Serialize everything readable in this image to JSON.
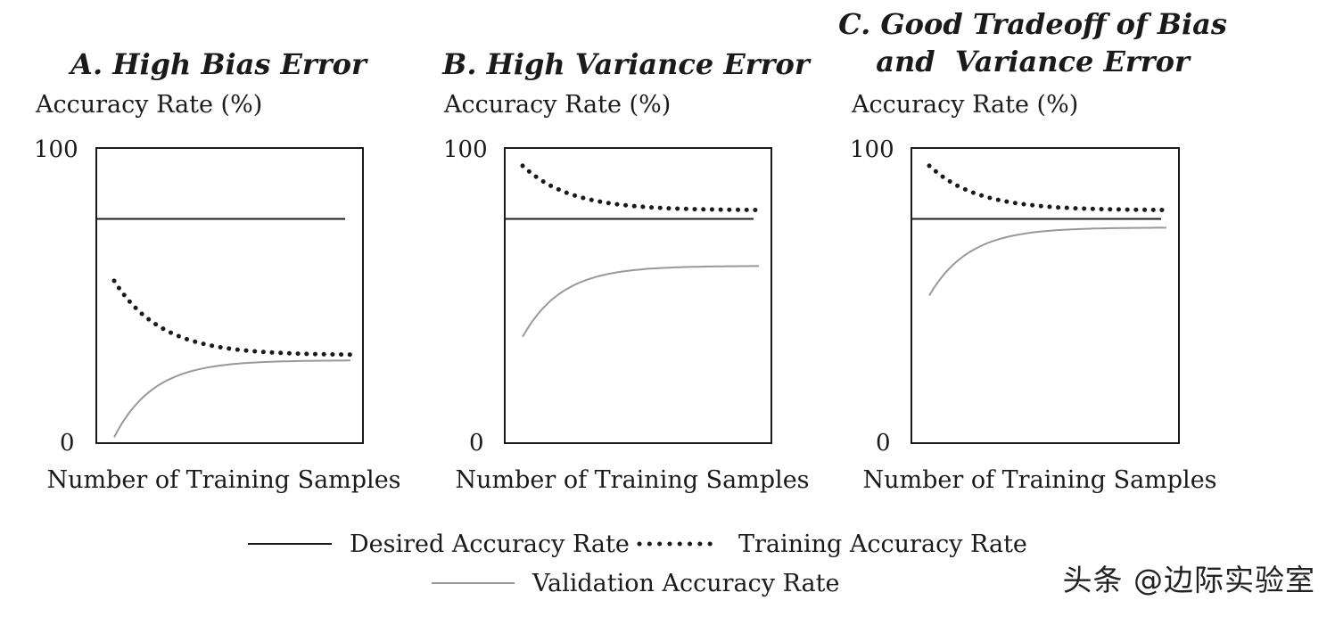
{
  "chart_data": [
    {
      "type": "line",
      "title_lines": [
        "A. High Bias Error"
      ],
      "ylabel": "Accuracy Rate (%)",
      "xlabel": "Number of Training Samples",
      "ylim": [
        0,
        100
      ],
      "yticks": [
        "100",
        "0"
      ],
      "desired": 76,
      "training": {
        "start": 55,
        "end": 30
      },
      "validation": {
        "start": 2,
        "end": 28
      }
    },
    {
      "type": "line",
      "title_lines": [
        "B. High Variance Error"
      ],
      "ylabel": "Accuracy Rate (%)",
      "xlabel": "Number of Training Samples",
      "ylim": [
        0,
        100
      ],
      "yticks": [
        "100",
        "0"
      ],
      "desired": 76,
      "training": {
        "start": 94,
        "end": 79
      },
      "validation": {
        "start": 36,
        "end": 60
      }
    },
    {
      "type": "line",
      "title_lines": [
        "C. Good Tradeoff of Bias",
        "and  Variance Error"
      ],
      "ylabel": "Accuracy Rate (%)",
      "xlabel": "Number of Training Samples",
      "ylim": [
        0,
        100
      ],
      "yticks": [
        "100",
        "0"
      ],
      "desired": 76,
      "training": {
        "start": 94,
        "end": 79
      },
      "validation": {
        "start": 50,
        "end": 73
      }
    }
  ],
  "legend": {
    "desired": "Desired Accuracy Rate",
    "training": "Training Accuracy Rate",
    "validation": "Validation Accuracy Rate"
  },
  "colors": {
    "desired": "#1a1a1a",
    "training": "#1a1a1a",
    "validation": "#999999",
    "frame": "#1a1a1a"
  },
  "watermark": "头条 @边际实验室"
}
